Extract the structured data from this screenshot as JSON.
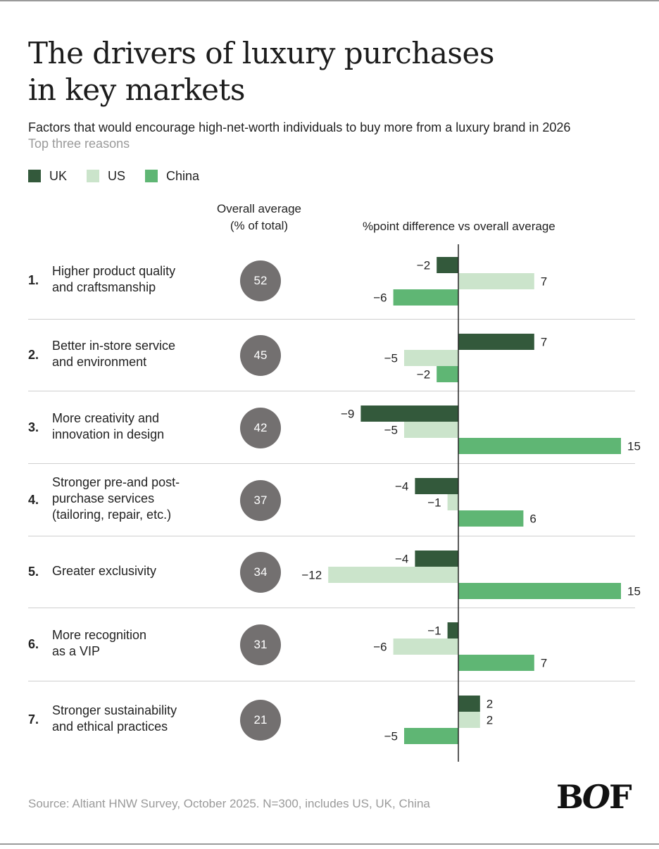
{
  "header": {
    "title_line1": "The drivers of luxury purchases",
    "title_line2": "in key markets",
    "subtitle": "Factors that would encourage high-net-worth individuals to buy more from a luxury brand in 2026",
    "note": "Top three reasons"
  },
  "legend": [
    {
      "label": "UK",
      "color": "#33593b"
    },
    {
      "label": "US",
      "color": "#cbe4cb"
    },
    {
      "label": "China",
      "color": "#5fb674"
    }
  ],
  "columns": {
    "average_line1": "Overall average",
    "average_line2": "(% of total)",
    "difference": "%point difference vs overall average"
  },
  "chart_data": {
    "type": "bar",
    "orientation": "horizontal",
    "title": "The drivers of luxury purchases in key markets",
    "subtitle": "Factors that would encourage high-net-worth individuals to buy more from a luxury brand in 2026",
    "xlabel": "%point difference vs overall average",
    "categories": [
      "Higher product quality and craftsmanship",
      "Better in-store service and environment",
      "More creativity and innovation in design",
      "Stronger pre-and post-purchase services (tailoring, repair, etc.)",
      "Greater exclusivity",
      "More recognition as a VIP",
      "Stronger sustainability and ethical practices"
    ],
    "overall_average": [
      52,
      45,
      42,
      37,
      34,
      31,
      21
    ],
    "series": [
      {
        "name": "UK",
        "color": "#33593b",
        "values": [
          -2,
          7,
          -9,
          -4,
          -4,
          -1,
          2
        ]
      },
      {
        "name": "US",
        "color": "#cbe4cb",
        "values": [
          7,
          -5,
          -5,
          -1,
          -12,
          -6,
          2
        ]
      },
      {
        "name": "China",
        "color": "#5fb674",
        "values": [
          -6,
          -2,
          15,
          6,
          15,
          7,
          -5
        ]
      }
    ],
    "legend_position": "top-left",
    "grid": false
  },
  "rows": [
    {
      "num": "1.",
      "lines": [
        "Higher product quality",
        "and craftsmanship"
      ]
    },
    {
      "num": "2.",
      "lines": [
        "Better in-store service",
        "and environment"
      ]
    },
    {
      "num": "3.",
      "lines": [
        "More creativity and",
        "innovation in design"
      ]
    },
    {
      "num": "4.",
      "lines": [
        "Stronger pre-and post-",
        "purchase services",
        "(tailoring, repair, etc.)"
      ]
    },
    {
      "num": "5.",
      "lines": [
        "Greater exclusivity"
      ]
    },
    {
      "num": "6.",
      "lines": [
        "More recognition",
        "as a VIP"
      ]
    },
    {
      "num": "7.",
      "lines": [
        "Stronger sustainability",
        "and ethical practices"
      ]
    }
  ],
  "footer": {
    "source": "Source: Altiant HNW Survey, October 2025. N=300, includes US, UK, China",
    "logo_text": "BOF"
  }
}
